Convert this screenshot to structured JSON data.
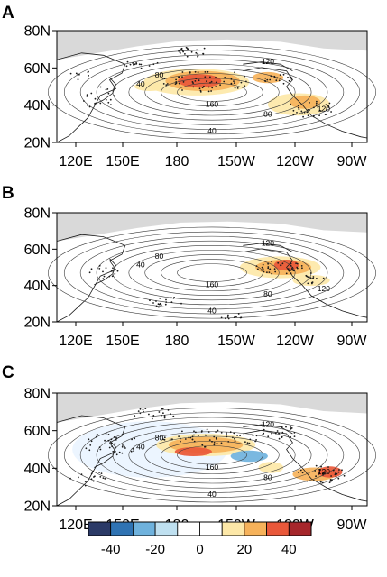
{
  "figure": {
    "colors": {
      "land": "#d9d9d9",
      "ocean": "#ffffff",
      "coast": "#1a1a1a",
      "contour": "#3a3a3a",
      "stipple": "#1a1a1a"
    },
    "lat_labels": [
      "80N",
      "60N",
      "40N",
      "20N"
    ],
    "lon_labels": [
      "120E",
      "150E",
      "180",
      "150W",
      "120W",
      "90W"
    ],
    "panels": [
      {
        "label": "A",
        "contour_labels": [
          "40",
          "80",
          "120",
          "160",
          "80",
          "120",
          "40"
        ]
      },
      {
        "label": "B",
        "contour_labels": [
          "40",
          "80",
          "120",
          "160",
          "80",
          "120",
          "40"
        ]
      },
      {
        "label": "C",
        "contour_labels": [
          "40",
          "80",
          "120",
          "160",
          "80",
          "120",
          "40"
        ]
      }
    ],
    "colorbar": {
      "colors": [
        "#2b3a67",
        "#2f73b3",
        "#6fb2dd",
        "#bfe0f0",
        "#ffffff",
        "#ffffff",
        "#fde8a8",
        "#f6b25a",
        "#e9583a",
        "#a6262b"
      ],
      "tick_labels": [
        "-40",
        "-20",
        "0",
        "20",
        "40"
      ]
    }
  }
}
